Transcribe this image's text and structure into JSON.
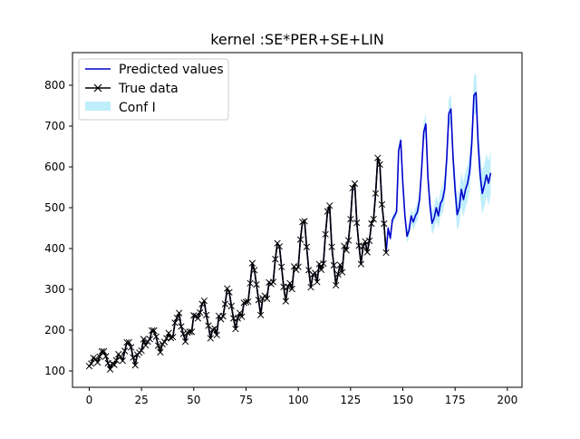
{
  "chart_data": {
    "type": "line",
    "title": "kernel :SE*PER+SE+LIN",
    "xlabel": "",
    "ylabel": "",
    "xlim": [
      -8,
      207
    ],
    "ylim": [
      60,
      880
    ],
    "xticks": [
      0,
      25,
      50,
      75,
      100,
      125,
      150,
      175,
      200
    ],
    "yticks": [
      100,
      200,
      300,
      400,
      500,
      600,
      700,
      800
    ],
    "grid": false,
    "legend_position": "top-left",
    "colors": {
      "predicted": "#0000cc",
      "true": "#000000",
      "conf": "#bfeefb"
    },
    "legend": {
      "predicted": "Predicted values",
      "true": "True data",
      "conf": "Conf I"
    },
    "true_data": {
      "name": "True data",
      "start_x": 0,
      "values": [
        112,
        118,
        132,
        129,
        121,
        135,
        148,
        148,
        136,
        119,
        104,
        118,
        115,
        126,
        141,
        135,
        125,
        149,
        170,
        170,
        158,
        133,
        114,
        140,
        145,
        150,
        178,
        163,
        172,
        178,
        199,
        199,
        184,
        162,
        146,
        166,
        171,
        180,
        193,
        181,
        183,
        218,
        230,
        242,
        209,
        191,
        172,
        194,
        196,
        196,
        236,
        235,
        229,
        243,
        264,
        272,
        237,
        211,
        180,
        201,
        204,
        188,
        235,
        227,
        234,
        264,
        302,
        293,
        259,
        229,
        203,
        229,
        242,
        233,
        267,
        269,
        270,
        315,
        364,
        347,
        312,
        274,
        237,
        278,
        284,
        277,
        317,
        313,
        318,
        374,
        413,
        405,
        355,
        306,
        271,
        306,
        315,
        301,
        356,
        348,
        355,
        422,
        465,
        467,
        404,
        347,
        305,
        336,
        340,
        318,
        362,
        348,
        363,
        435,
        491,
        505,
        404,
        359,
        310,
        337,
        360,
        342,
        406,
        396,
        420,
        472,
        548,
        559,
        463,
        407,
        362,
        405,
        417,
        391,
        419,
        461,
        472,
        535,
        622,
        606,
        508,
        461,
        390
      ]
    },
    "predicted": {
      "name": "Predicted values",
      "start_x": 0,
      "values": [
        112,
        118,
        132,
        129,
        121,
        135,
        148,
        148,
        136,
        119,
        104,
        118,
        115,
        126,
        141,
        135,
        125,
        149,
        170,
        170,
        158,
        133,
        114,
        140,
        145,
        150,
        178,
        163,
        172,
        178,
        199,
        199,
        184,
        162,
        146,
        166,
        171,
        180,
        193,
        181,
        183,
        218,
        230,
        242,
        209,
        191,
        172,
        194,
        196,
        196,
        236,
        235,
        229,
        243,
        264,
        272,
        237,
        211,
        180,
        201,
        204,
        188,
        235,
        227,
        234,
        264,
        302,
        293,
        259,
        229,
        203,
        229,
        242,
        233,
        267,
        269,
        270,
        315,
        364,
        347,
        312,
        274,
        237,
        278,
        284,
        277,
        317,
        313,
        318,
        374,
        413,
        405,
        355,
        306,
        271,
        306,
        315,
        301,
        356,
        348,
        355,
        422,
        465,
        467,
        404,
        347,
        305,
        336,
        340,
        318,
        362,
        348,
        363,
        435,
        491,
        505,
        404,
        359,
        310,
        337,
        360,
        342,
        406,
        396,
        420,
        472,
        548,
        559,
        463,
        407,
        362,
        405,
        417,
        391,
        419,
        461,
        472,
        535,
        622,
        606,
        508,
        461,
        390,
        450,
        425,
        470,
        480,
        490,
        640,
        665,
        560,
        480,
        430,
        445,
        480,
        465,
        480,
        490,
        520,
        595,
        685,
        705,
        575,
        505,
        462,
        475,
        500,
        480,
        510,
        520,
        545,
        620,
        730,
        742,
        625,
        545,
        483,
        500,
        545,
        520,
        545,
        560,
        590,
        660,
        775,
        782,
        660,
        580,
        535,
        555,
        580,
        560,
        585
      ]
    },
    "conf_band": {
      "name": "Conf I",
      "forecast_start_x": 143,
      "half_width_start": 8,
      "half_width_end": 55
    }
  }
}
